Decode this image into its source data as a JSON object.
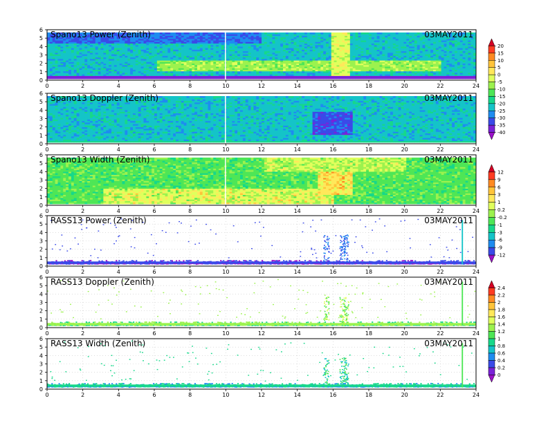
{
  "figure": {
    "x_axis": {
      "min": 0,
      "max": 24,
      "ticks": [
        0,
        2,
        4,
        6,
        8,
        10,
        12,
        14,
        16,
        18,
        20,
        22,
        24
      ]
    },
    "y_axis": {
      "min": 0,
      "max": 6,
      "ticks": [
        0,
        1,
        2,
        3,
        4,
        5,
        6
      ]
    }
  },
  "colorbars": [
    {
      "labels": [
        "20",
        "15",
        "10",
        "5",
        "0",
        "-5",
        "-10",
        "-15",
        "-20",
        "-25",
        "-30",
        "-35",
        "-40"
      ],
      "colors": [
        "#d40024",
        "#ff3c22",
        "#ff8a22",
        "#ffc43a",
        "#ffe85a",
        "#e0ff5c",
        "#9cf24e",
        "#4ee656",
        "#16d88a",
        "#14c4c8",
        "#1e8cf0",
        "#3a4ae8",
        "#7a22d8",
        "#9a10c8"
      ]
    },
    {
      "labels": [
        "12",
        "9",
        "6",
        "3",
        "1",
        "0.2",
        "-0.2",
        "-1",
        "-3",
        "-6",
        "-9",
        "-12"
      ],
      "colors": [
        "#d40024",
        "#ff3c22",
        "#ff8a22",
        "#ffc43a",
        "#ffe85a",
        "#e0ff5c",
        "#9cf24e",
        "#4ee656",
        "#16d88a",
        "#14c4c8",
        "#1e8cf0",
        "#3a4ae8",
        "#9a10c8"
      ]
    },
    {
      "labels": [
        "2.4",
        "2.2",
        "2",
        "1.8",
        "1.6",
        "1.4",
        "1.2",
        "1",
        "0.8",
        "0.6",
        "0.4",
        "0.2",
        "0"
      ],
      "colors": [
        "#d40024",
        "#ff3c22",
        "#ff8a22",
        "#ffc43a",
        "#ffe85a",
        "#e0ff5c",
        "#9cf24e",
        "#4ee656",
        "#16d88a",
        "#14c4c8",
        "#1e8cf0",
        "#3a4ae8",
        "#7a22d8",
        "#9a10c8"
      ]
    }
  ],
  "chart_data": [
    {
      "type": "heatmap",
      "title": "Spano13 Power (Zenith)",
      "date": "03MAY2011",
      "xlim": [
        0,
        24
      ],
      "ylim": [
        0,
        6
      ],
      "colorbar": 0,
      "description_values": {
        "dominant_range": [
          -20,
          -10
        ],
        "band_height_km": [
          1,
          2
        ],
        "band_value": -5
      }
    },
    {
      "type": "heatmap",
      "title": "Spano13 Doppler (Zenith)",
      "date": "03MAY2011",
      "xlim": [
        0,
        24
      ],
      "ylim": [
        0,
        6
      ],
      "colorbar": 0,
      "description_values": {
        "dominant_range": [
          -25,
          -15
        ],
        "low_value_hours": [
          15,
          17
        ]
      }
    },
    {
      "type": "heatmap",
      "title": "Spano13 Width (Zenith)",
      "date": "03MAY2011",
      "xlim": [
        0,
        24
      ],
      "ylim": [
        0,
        6
      ],
      "colorbar": 1,
      "description_values": {
        "dominant_range": [
          -3,
          1
        ],
        "high_value_region_hours": [
          2,
          16
        ]
      }
    },
    {
      "type": "heatmap",
      "title": "RASS13 Power (Zenith)",
      "date": "03MAY2011",
      "xlim": [
        0,
        24
      ],
      "ylim": [
        0,
        6
      ],
      "colorbar": 1,
      "description_values": {
        "dominant_range": [
          -12,
          -9
        ],
        "valid_height_km": [
          0.3,
          1.0
        ],
        "spike_hours": [
          15.5,
          16.7,
          23.2
        ]
      }
    },
    {
      "type": "heatmap",
      "title": "RASS13 Doppler (Zenith)",
      "date": "03MAY2011",
      "xlim": [
        0,
        24
      ],
      "ylim": [
        0,
        6
      ],
      "colorbar": 2,
      "description_values": {
        "dominant_range": [
          0.8,
          1.2
        ],
        "valid_height_km": [
          0.3,
          1.0
        ],
        "spike_hours": [
          15.5,
          16.7,
          23.2
        ]
      }
    },
    {
      "type": "heatmap",
      "title": "RASS13 Width (Zenith)",
      "date": "03MAY2011",
      "xlim": [
        0,
        24
      ],
      "ylim": [
        0,
        6
      ],
      "colorbar": 2,
      "description_values": {
        "dominant_range": [
          0.4,
          1.0
        ],
        "valid_height_km": [
          0.3,
          1.0
        ],
        "spike_hours": [
          15.5,
          16.7,
          23.2
        ]
      }
    }
  ]
}
